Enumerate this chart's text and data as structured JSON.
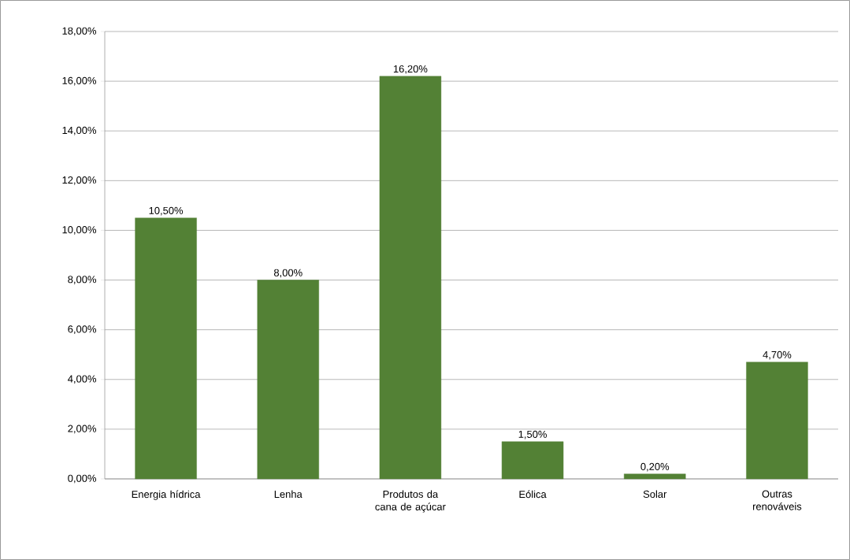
{
  "chart_data": {
    "type": "bar",
    "categories": [
      "Energia hídrica",
      "Lenha",
      "Produtos da cana de açúcar",
      "Eólica",
      "Solar",
      "Outras renováveis"
    ],
    "values": [
      10.5,
      8.0,
      16.2,
      1.5,
      0.2,
      4.7
    ],
    "value_labels": [
      "10,50%",
      "8,00%",
      "16,20%",
      "1,50%",
      "0,20%",
      "4,70%"
    ],
    "color": "#538135",
    "ylim": [
      0,
      18
    ],
    "yticks": [
      {
        "value": 0,
        "label": "0,00%"
      },
      {
        "value": 2,
        "label": "2,00%"
      },
      {
        "value": 4,
        "label": "4,00%"
      },
      {
        "value": 6,
        "label": "6,00%"
      },
      {
        "value": 8,
        "label": "8,00%"
      },
      {
        "value": 10,
        "label": "10,00%"
      },
      {
        "value": 12,
        "label": "12,00%"
      },
      {
        "value": 14,
        "label": "14,00%"
      },
      {
        "value": 16,
        "label": "16,00%"
      },
      {
        "value": 18,
        "label": "18,00%"
      }
    ],
    "grid": "y"
  }
}
